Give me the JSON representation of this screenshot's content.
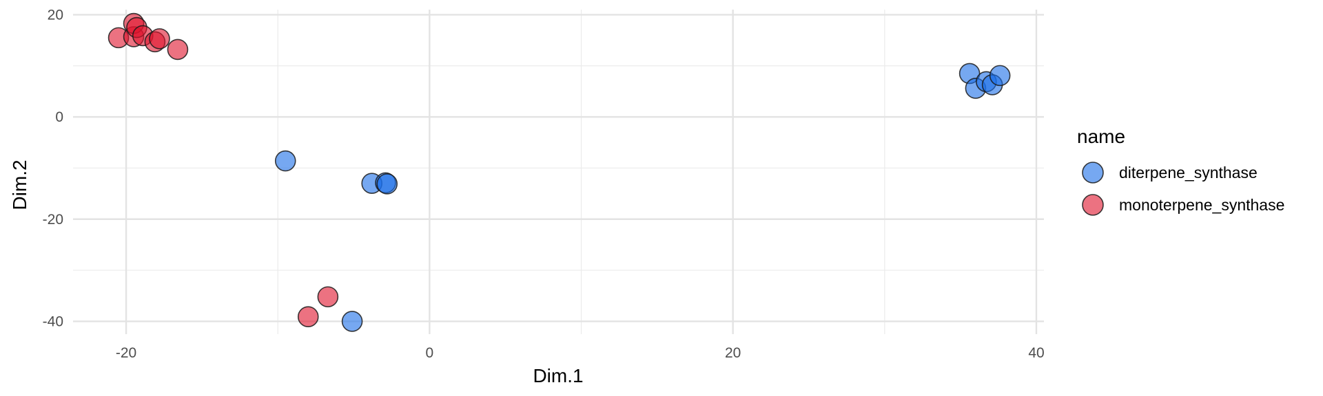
{
  "chart_data": {
    "type": "scatter",
    "title": "",
    "xlabel": "Dim.1",
    "ylabel": "Dim.2",
    "xlim": [
      -23.5,
      40.5
    ],
    "ylim": [
      -42.5,
      21
    ],
    "x_ticks": [
      -20,
      0,
      20,
      40
    ],
    "y_ticks": [
      20,
      0,
      -20,
      -40
    ],
    "x_tick_labels": [
      "-20",
      "0",
      "20",
      "40"
    ],
    "y_tick_labels": [
      "20",
      "0",
      "-20",
      "-40"
    ],
    "grid": true,
    "legend": {
      "title": "name",
      "position": "right"
    },
    "series": [
      {
        "name": "diterpene_synthase",
        "color": "#1a6ee8",
        "points": [
          {
            "x": 35.6,
            "y": 8.5
          },
          {
            "x": 36.0,
            "y": 5.6
          },
          {
            "x": 36.7,
            "y": 6.9
          },
          {
            "x": 37.1,
            "y": 6.3
          },
          {
            "x": 37.6,
            "y": 8.1
          },
          {
            "x": -9.5,
            "y": -8.6
          },
          {
            "x": -3.8,
            "y": -13.0
          },
          {
            "x": -2.9,
            "y": -12.9
          },
          {
            "x": -2.8,
            "y": -13.1
          },
          {
            "x": -5.1,
            "y": -40.0
          }
        ]
      },
      {
        "name": "monoterpene_synthase",
        "color": "#e0142d",
        "points": [
          {
            "x": -20.5,
            "y": 15.5
          },
          {
            "x": -19.5,
            "y": 15.7
          },
          {
            "x": -19.5,
            "y": 18.3
          },
          {
            "x": -19.3,
            "y": 17.5
          },
          {
            "x": -18.9,
            "y": 15.9
          },
          {
            "x": -18.1,
            "y": 14.7
          },
          {
            "x": -17.8,
            "y": 15.3
          },
          {
            "x": -16.6,
            "y": 13.2
          },
          {
            "x": -8.0,
            "y": -39.1
          },
          {
            "x": -6.7,
            "y": -35.2
          }
        ]
      }
    ]
  }
}
